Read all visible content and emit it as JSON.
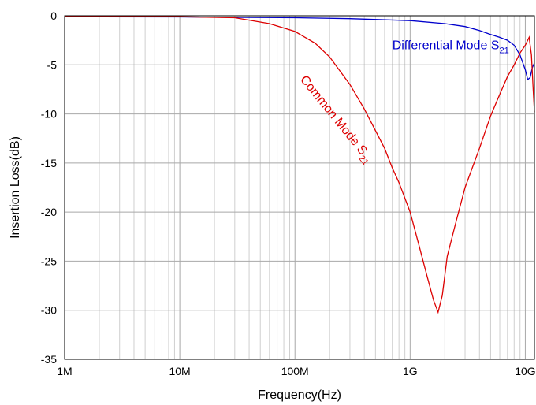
{
  "chart_data": {
    "type": "line",
    "title": "",
    "xlabel": "Frequency(Hz)",
    "ylabel": "Insertion Loss(dB)",
    "x_scale": "log",
    "xlim": [
      1000000,
      12000000000
    ],
    "ylim": [
      -35,
      0
    ],
    "x_ticks": [
      {
        "value": 1000000,
        "label": "1M"
      },
      {
        "value": 10000000,
        "label": "10M"
      },
      {
        "value": 100000000,
        "label": "100M"
      },
      {
        "value": 1000000000,
        "label": "1G"
      },
      {
        "value": 10000000000,
        "label": "10G"
      }
    ],
    "y_ticks": [
      {
        "value": 0,
        "label": "0"
      },
      {
        "value": -5,
        "label": "-5"
      },
      {
        "value": -10,
        "label": "-10"
      },
      {
        "value": -15,
        "label": "-15"
      },
      {
        "value": -20,
        "label": "-20"
      },
      {
        "value": -25,
        "label": "-25"
      },
      {
        "value": -30,
        "label": "-30"
      },
      {
        "value": -35,
        "label": "-35"
      }
    ],
    "grid": true,
    "series": [
      {
        "name": "Differential Mode S21",
        "color": "#0000cc",
        "points": [
          [
            1000000,
            -0.1
          ],
          [
            10000000,
            -0.12
          ],
          [
            100000000,
            -0.2
          ],
          [
            300000000,
            -0.3
          ],
          [
            1000000000,
            -0.5
          ],
          [
            2000000000,
            -0.8
          ],
          [
            3000000000,
            -1.1
          ],
          [
            4000000000,
            -1.5
          ],
          [
            5000000000,
            -1.9
          ],
          [
            6000000000,
            -2.2
          ],
          [
            7000000000,
            -2.5
          ],
          [
            8000000000,
            -3.0
          ],
          [
            9000000000,
            -4.0
          ],
          [
            10000000000,
            -5.5
          ],
          [
            10500000000,
            -6.5
          ],
          [
            11000000000,
            -6.3
          ],
          [
            11500000000,
            -5.3
          ],
          [
            12000000000,
            -4.8
          ]
        ]
      },
      {
        "name": "Common Mode S21",
        "color": "#dd0000",
        "points": [
          [
            1000000,
            -0.1
          ],
          [
            10000000,
            -0.1
          ],
          [
            30000000,
            -0.2
          ],
          [
            60000000,
            -0.8
          ],
          [
            100000000,
            -1.6
          ],
          [
            150000000,
            -2.8
          ],
          [
            200000000,
            -4.2
          ],
          [
            300000000,
            -7.0
          ],
          [
            400000000,
            -9.5
          ],
          [
            500000000,
            -11.7
          ],
          [
            600000000,
            -13.5
          ],
          [
            700000000,
            -15.5
          ],
          [
            800000000,
            -17.0
          ],
          [
            1000000000,
            -20.0
          ],
          [
            1200000000,
            -23.5
          ],
          [
            1400000000,
            -26.5
          ],
          [
            1600000000,
            -29.0
          ],
          [
            1750000000,
            -30.2
          ],
          [
            1900000000,
            -28.5
          ],
          [
            2100000000,
            -24.5
          ],
          [
            2500000000,
            -21.0
          ],
          [
            3000000000,
            -17.5
          ],
          [
            4000000000,
            -13.5
          ],
          [
            5000000000,
            -10.2
          ],
          [
            6000000000,
            -8.0
          ],
          [
            7000000000,
            -6.2
          ],
          [
            8000000000,
            -5.0
          ],
          [
            9000000000,
            -3.8
          ],
          [
            10000000000,
            -3.0
          ],
          [
            10800000000,
            -2.2
          ],
          [
            11300000000,
            -4.0
          ],
          [
            11700000000,
            -7.5
          ],
          [
            12000000000,
            -9.8
          ]
        ]
      }
    ],
    "annotations": [
      {
        "series": 0,
        "text": "Differential Mode S",
        "sub": "21",
        "color": "#0000cc",
        "anchor_x": 700000000,
        "anchor_y": -3.4,
        "rotation": 0
      },
      {
        "series": 1,
        "text": "Common Mode S",
        "sub": "21",
        "color": "#dd0000",
        "anchor_x": 110000000,
        "anchor_y": -6.5,
        "rotation": 51
      }
    ]
  }
}
